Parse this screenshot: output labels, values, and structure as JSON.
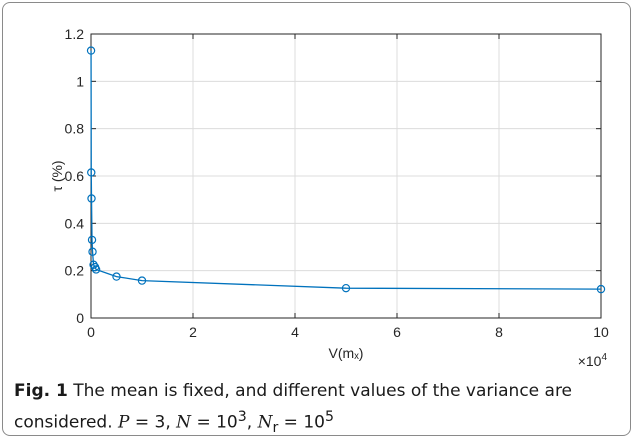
{
  "chart_data": {
    "type": "line",
    "xlabel": "V(mₓ)",
    "ylabel": "τ (%)",
    "x_multiplier": "×10",
    "x_multiplier_exp": "4",
    "xlim": [
      0,
      100000
    ],
    "ylim": [
      0,
      1.2
    ],
    "grid": true,
    "x_ticks": [
      0,
      20000,
      40000,
      60000,
      80000,
      100000
    ],
    "x_tick_labels": [
      "0",
      "2",
      "4",
      "6",
      "8",
      "10"
    ],
    "y_ticks": [
      0,
      0.2,
      0.4,
      0.6,
      0.8,
      1.0,
      1.2
    ],
    "y_tick_labels": [
      "0",
      "0.2",
      "0.4",
      "0.6",
      "0.8",
      "1",
      "1.2"
    ],
    "color": "#0072bd",
    "series": [
      {
        "x": [
          10,
          50,
          100,
          200,
          300,
          500,
          800,
          1000,
          5000,
          10000,
          50000,
          100000
        ],
        "y": [
          1.13,
          0.615,
          0.505,
          0.33,
          0.28,
          0.225,
          0.215,
          0.205,
          0.175,
          0.158,
          0.126,
          0.122
        ]
      }
    ]
  },
  "caption": {
    "label": "Fig. 1",
    "text": "The mean is fixed, and different values of the variance are considered.",
    "params": {
      "P_sym": "P",
      "P_val": " = 3, ",
      "N_sym": "N",
      "N_val": " = 10",
      "N_exp": "3",
      "Nr_sym": "N",
      "Nr_sub": "r",
      "Nr_val": " = 10",
      "Nr_exp": "5"
    }
  }
}
